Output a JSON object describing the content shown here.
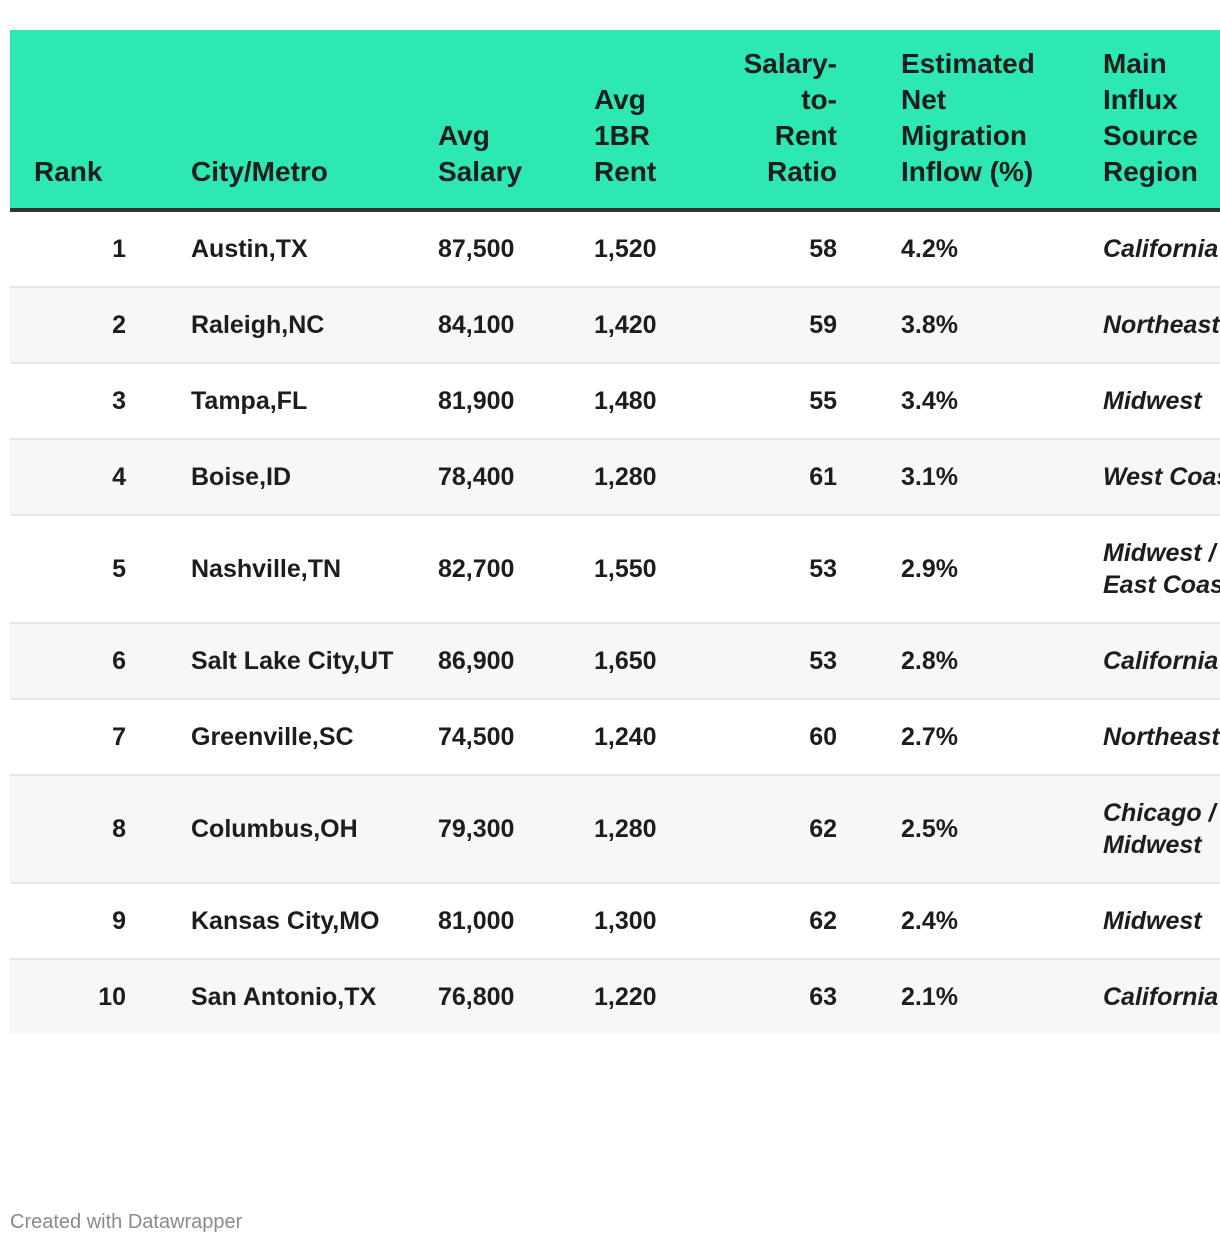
{
  "chart_data": {
    "type": "table",
    "headers": {
      "rank": [
        "Rank"
      ],
      "city": [
        "City/Metro"
      ],
      "salary": [
        "Avg",
        "Salary"
      ],
      "rent": [
        "Avg",
        "1BR",
        "Rent"
      ],
      "ratio": [
        "Salary-",
        "to-",
        "Rent",
        "Ratio"
      ],
      "migration": [
        "Estimated",
        "Net",
        "Migration",
        "Inflow (%)"
      ],
      "source": [
        "Main",
        "Influx",
        "Source",
        "Region"
      ]
    },
    "rows": [
      {
        "rank": "1",
        "city": "Austin,TX",
        "salary": "87,500",
        "rent": "1,520",
        "ratio": "58",
        "migration": "4.2%",
        "source": "California"
      },
      {
        "rank": "2",
        "city": "Raleigh,NC",
        "salary": "84,100",
        "rent": "1,420",
        "ratio": "59",
        "migration": "3.8%",
        "source": "Northeast"
      },
      {
        "rank": "3",
        "city": "Tampa,FL",
        "salary": "81,900",
        "rent": "1,480",
        "ratio": "55",
        "migration": "3.4%",
        "source": "Midwest"
      },
      {
        "rank": "4",
        "city": "Boise,ID",
        "salary": "78,400",
        "rent": "1,280",
        "ratio": "61",
        "migration": "3.1%",
        "source": "West Coast"
      },
      {
        "rank": "5",
        "city": "Nashville,TN",
        "salary": "82,700",
        "rent": "1,550",
        "ratio": "53",
        "migration": "2.9%",
        "source": "Midwest / East Coast"
      },
      {
        "rank": "6",
        "city": "Salt Lake City,UT",
        "salary": "86,900",
        "rent": "1,650",
        "ratio": "53",
        "migration": "2.8%",
        "source": "California"
      },
      {
        "rank": "7",
        "city": "Greenville,SC",
        "salary": "74,500",
        "rent": "1,240",
        "ratio": "60",
        "migration": "2.7%",
        "source": "Northeast"
      },
      {
        "rank": "8",
        "city": "Columbus,OH",
        "salary": "79,300",
        "rent": "1,280",
        "ratio": "62",
        "migration": "2.5%",
        "source": "Chicago / Midwest"
      },
      {
        "rank": "9",
        "city": "Kansas City,MO",
        "salary": "81,000",
        "rent": "1,300",
        "ratio": "62",
        "migration": "2.4%",
        "source": "Midwest"
      },
      {
        "rank": "10",
        "city": "San Antonio,TX",
        "salary": "76,800",
        "rent": "1,220",
        "ratio": "63",
        "migration": "2.1%",
        "source": "California"
      }
    ]
  },
  "footer": {
    "credit": "Created with Datawrapper"
  },
  "colors": {
    "header_bg": "#2de8b3",
    "stripe_bg": "#f7f7f7",
    "text": "#1d1d1d",
    "footer_text": "#8a8a8a"
  }
}
